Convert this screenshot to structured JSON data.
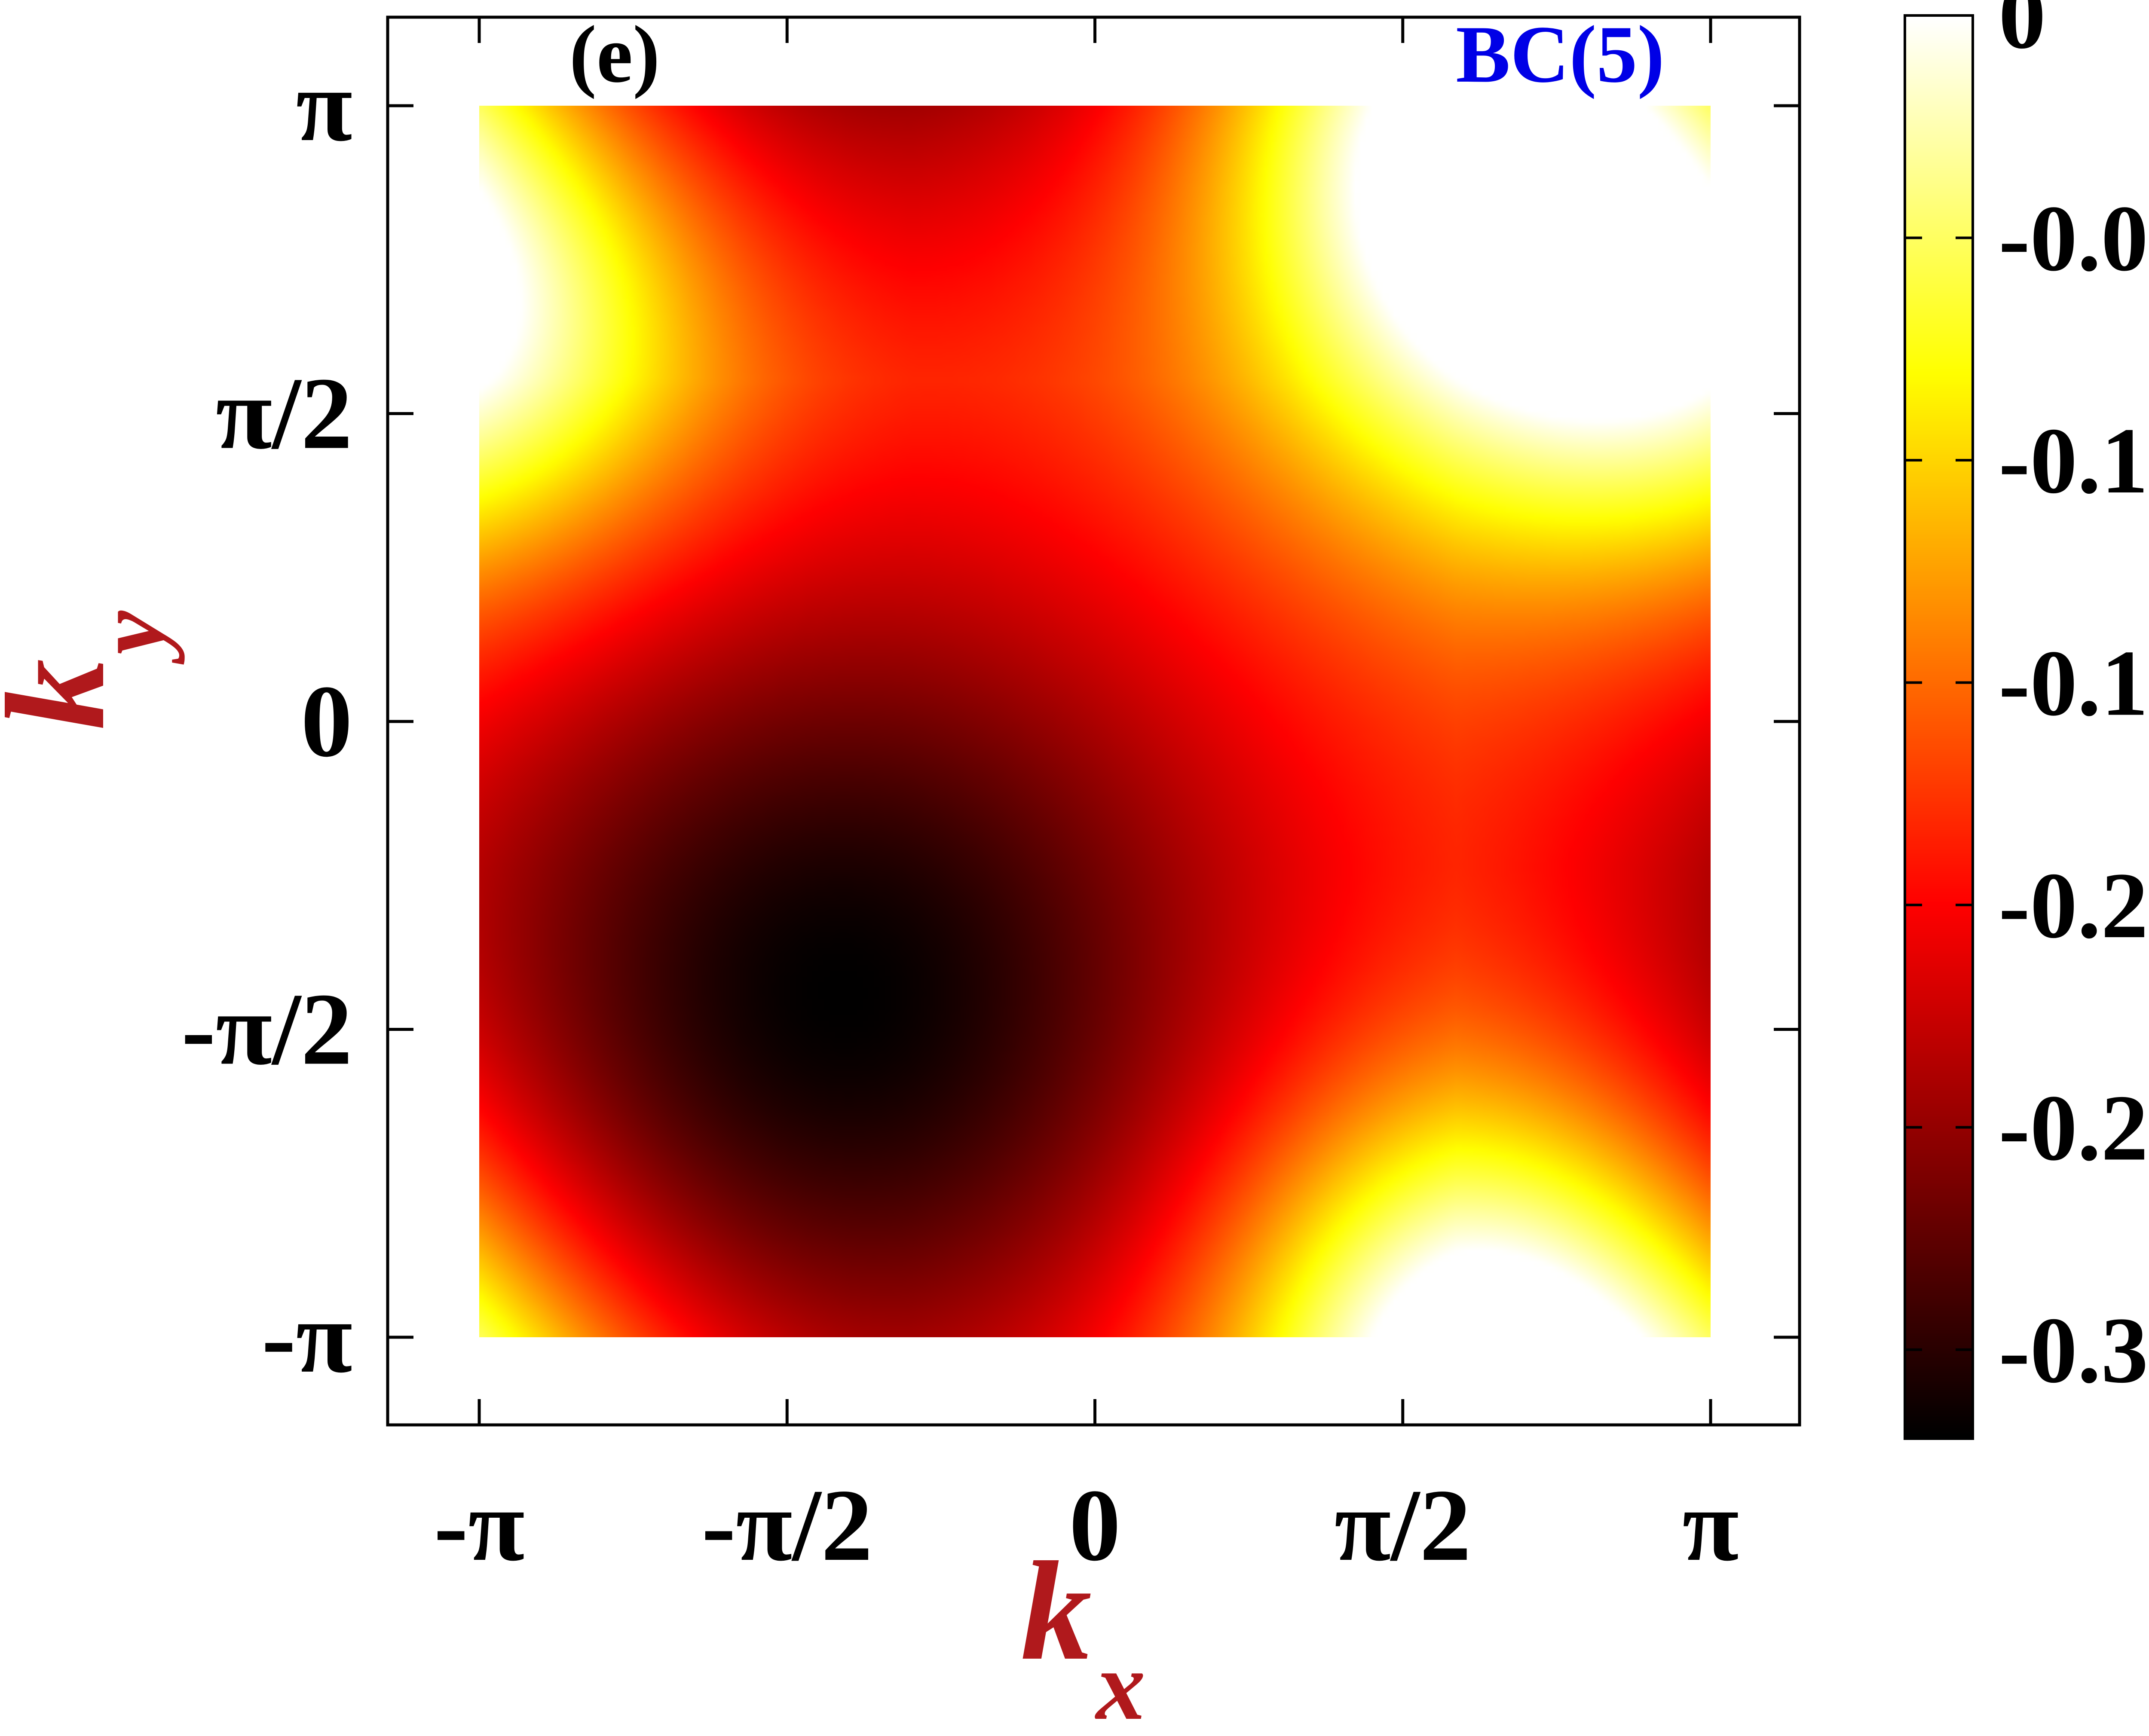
{
  "chart_data": {
    "type": "heatmap",
    "panel_label": "(e)",
    "annotation": "BC(5)",
    "xlabel": {
      "main": "k",
      "sub": "x"
    },
    "ylabel": {
      "main": "k",
      "sub": "y"
    },
    "xlim": [
      -3.14159,
      3.14159
    ],
    "ylim": [
      -3.14159,
      3.14159
    ],
    "x_ticks": [
      {
        "value": -3.14159,
        "label": "-π"
      },
      {
        "value": -1.5708,
        "label": "-π/2"
      },
      {
        "value": 0,
        "label": "0"
      },
      {
        "value": 1.5708,
        "label": "π/2"
      },
      {
        "value": 3.14159,
        "label": "π"
      }
    ],
    "y_ticks": [
      {
        "value": 3.14159,
        "label": "π"
      },
      {
        "value": 1.5708,
        "label": "π/2"
      },
      {
        "value": 0,
        "label": "0"
      },
      {
        "value": -1.5708,
        "label": "-π/2"
      },
      {
        "value": -3.14159,
        "label": "-π"
      }
    ],
    "colorbar": {
      "colormap": "hot",
      "range": [
        -0.32,
        0.0
      ],
      "ticks": [
        {
          "value": 0,
          "label": "0"
        },
        {
          "value": -0.05,
          "label": "-0.05"
        },
        {
          "value": -0.1,
          "label": "-0.1"
        },
        {
          "value": -0.15,
          "label": "-0.15"
        },
        {
          "value": -0.2,
          "label": "-0.2"
        },
        {
          "value": -0.25,
          "label": "-0.25"
        },
        {
          "value": -0.3,
          "label": "-0.3"
        }
      ]
    },
    "features": [
      {
        "kind": "minimum",
        "kx": -1.3,
        "ky": -1.4,
        "value": -0.32
      },
      {
        "kind": "maximum",
        "kx": 2.2,
        "ky": 2.4,
        "value": 0.0
      },
      {
        "kind": "local-high",
        "kx": 1.9,
        "ky": -3.0,
        "value": -0.07
      },
      {
        "kind": "local-high",
        "kx": -3.0,
        "ky": 2.0,
        "value": -0.08
      }
    ],
    "grid": false,
    "legend": "none"
  },
  "colors": {
    "axis": "#000000",
    "axis_label": "#b0191c",
    "annotation": "#0000e6",
    "tick_label": "#000000"
  }
}
